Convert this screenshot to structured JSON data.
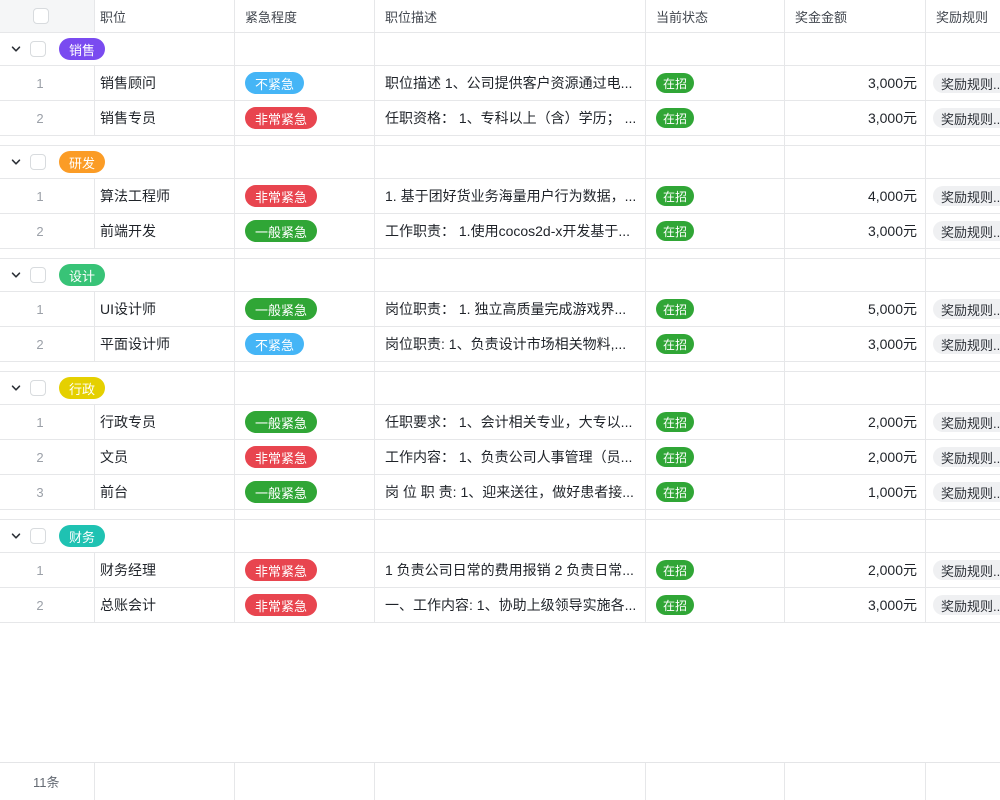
{
  "table": {
    "columns": [
      {
        "label": ""
      },
      {
        "label": "职位"
      },
      {
        "label": "紧急程度"
      },
      {
        "label": "职位描述"
      },
      {
        "label": "当前状态"
      },
      {
        "label": "奖金金额"
      },
      {
        "label": "奖励规则"
      }
    ],
    "groups": [
      {
        "name": "销售",
        "color": "#7A4BF0",
        "rows": [
          {
            "num": "1",
            "position": "销售顾问",
            "urgency": "不紧急",
            "description": "职位描述 1、公司提供客户资源通过电...",
            "status": "在招",
            "amount": "3,000元",
            "reward": "奖励规则..."
          },
          {
            "num": "2",
            "position": "销售专员",
            "urgency": "非常紧急",
            "description": "任职资格： 1、专科以上（含）学历； ...",
            "status": "在招",
            "amount": "3,000元",
            "reward": "奖励规则..."
          }
        ]
      },
      {
        "name": "研发",
        "color": "#FB9C26",
        "rows": [
          {
            "num": "1",
            "position": "算法工程师",
            "urgency": "非常紧急",
            "description": "1. 基于团好货业务海量用户行为数据，...",
            "status": "在招",
            "amount": "4,000元",
            "reward": "奖励规则..."
          },
          {
            "num": "2",
            "position": "前端开发",
            "urgency": "一般紧急",
            "description": "工作职责： 1.使用cocos2d-x开发基于...",
            "status": "在招",
            "amount": "3,000元",
            "reward": "奖励规则..."
          }
        ]
      },
      {
        "name": "设计",
        "color": "#38C377",
        "rows": [
          {
            "num": "1",
            "position": "UI设计师",
            "urgency": "一般紧急",
            "description": "岗位职责： 1. 独立高质量完成游戏界...",
            "status": "在招",
            "amount": "5,000元",
            "reward": "奖励规则..."
          },
          {
            "num": "2",
            "position": "平面设计师",
            "urgency": "不紧急",
            "description": "岗位职责: 1、负责设计市场相关物料,...",
            "status": "在招",
            "amount": "3,000元",
            "reward": "奖励规则..."
          }
        ]
      },
      {
        "name": "行政",
        "color": "#E5D000",
        "rows": [
          {
            "num": "1",
            "position": "行政专员",
            "urgency": "一般紧急",
            "description": "任职要求： 1、会计相关专业，大专以...",
            "status": "在招",
            "amount": "2,000元",
            "reward": "奖励规则..."
          },
          {
            "num": "2",
            "position": "文员",
            "urgency": "非常紧急",
            "description": "工作内容： 1、负责公司人事管理（员...",
            "status": "在招",
            "amount": "2,000元",
            "reward": "奖励规则..."
          },
          {
            "num": "3",
            "position": "前台",
            "urgency": "一般紧急",
            "description": "岗 位 职 责: 1、迎来送往，做好患者接...",
            "status": "在招",
            "amount": "1,000元",
            "reward": "奖励规则..."
          }
        ]
      },
      {
        "name": "财务",
        "color": "#1FC2B2",
        "rows": [
          {
            "num": "1",
            "position": "财务经理",
            "urgency": "非常紧急",
            "description": "1 负责公司日常的费用报销 2 负责日常...",
            "status": "在招",
            "amount": "2,000元",
            "reward": "奖励规则..."
          },
          {
            "num": "2",
            "position": "总账会计",
            "urgency": "非常紧急",
            "description": "一、工作内容: 1、协助上级领导实施各...",
            "status": "在招",
            "amount": "3,000元",
            "reward": "奖励规则..."
          }
        ]
      }
    ],
    "footer": {
      "count": "11条"
    }
  },
  "colors": {
    "urgency": {
      "不紧急": "#45B5F6",
      "一般紧急": "#30A636",
      "非常紧急": "#E8454F"
    },
    "status_open": "#30A636",
    "border": "#E6E7E9",
    "header_gutter_bg": "#F5F6F7"
  }
}
